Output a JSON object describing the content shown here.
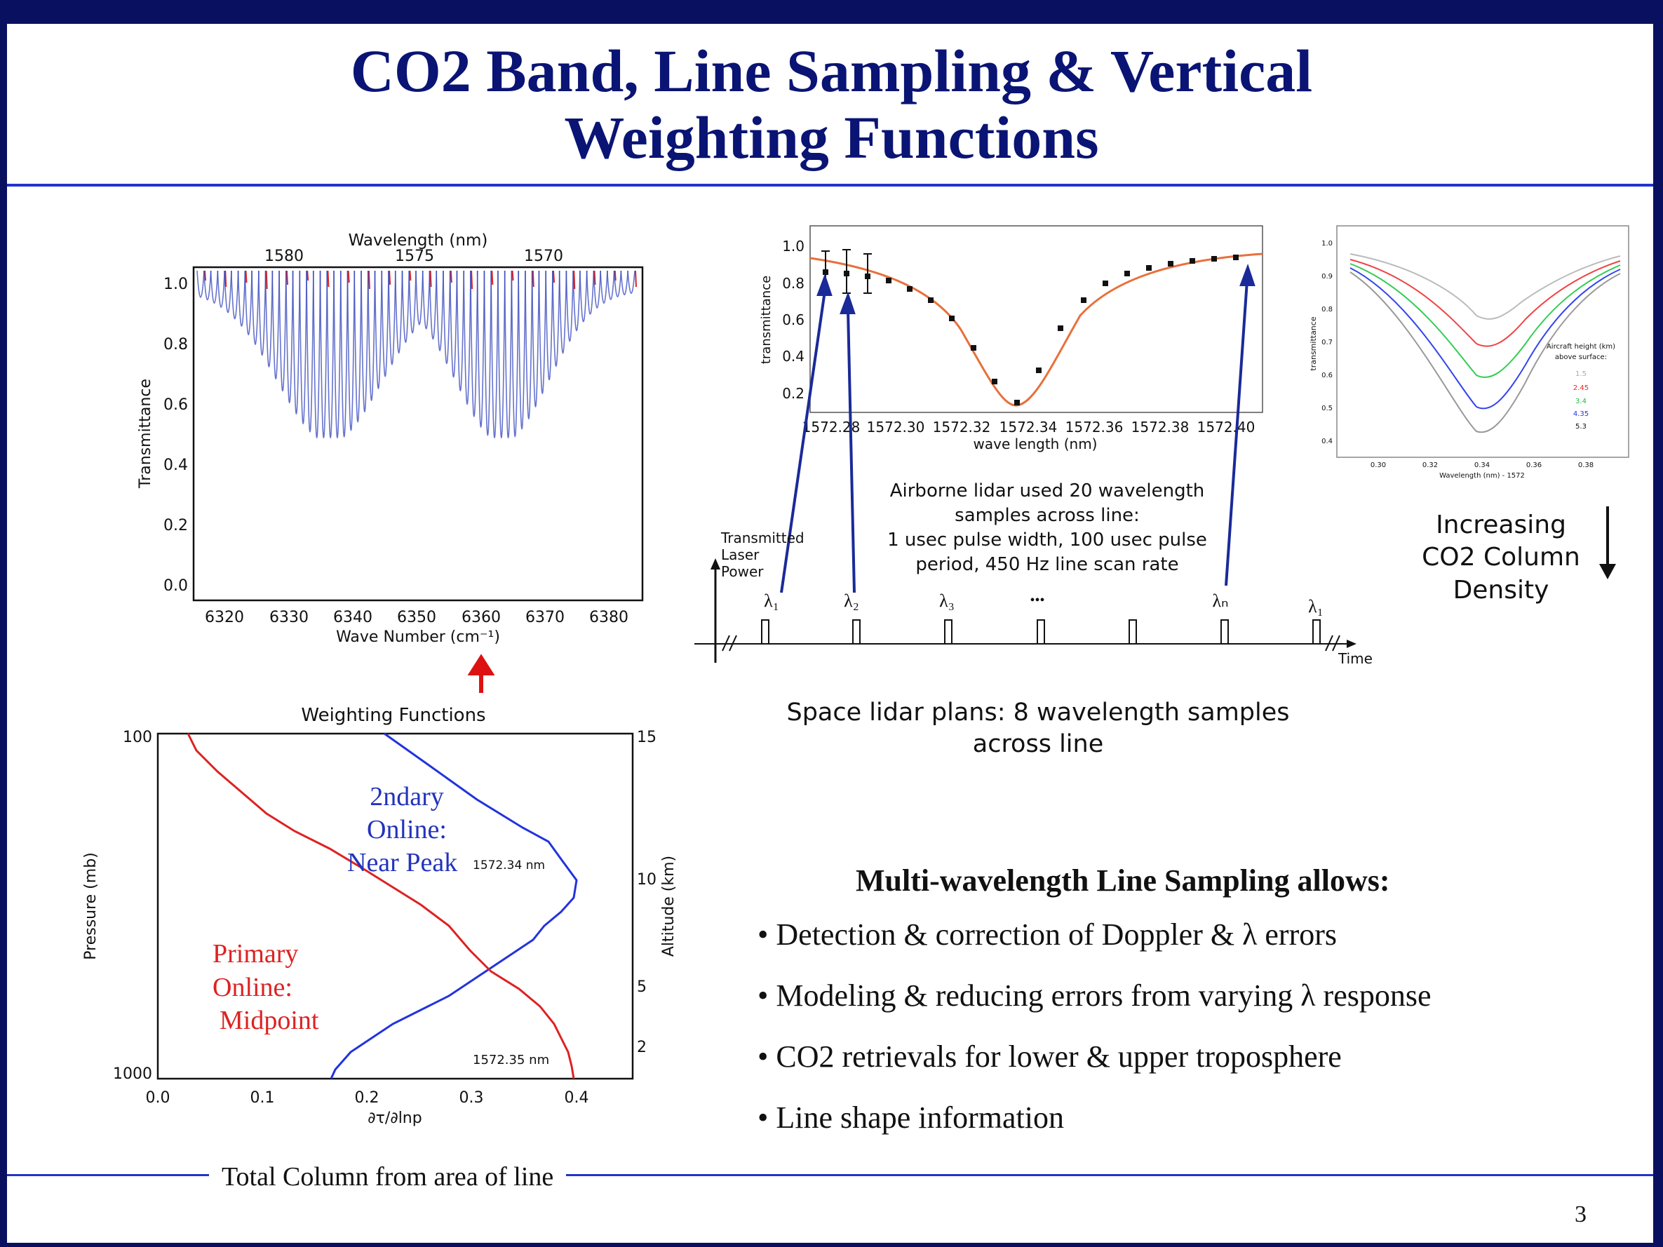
{
  "slide": {
    "title_line1": "CO2 Band, Line Sampling & Vertical",
    "title_line2": "Weighting Functions",
    "page_number": "3",
    "footer": "Total Column from area of line"
  },
  "band_plot": {
    "top_axis_label": "Wavelength (nm)",
    "top_ticks": [
      "1580",
      "1575",
      "1570"
    ],
    "y_label": "Transmittance",
    "y_ticks": [
      "1.0",
      "0.8",
      "0.6",
      "0.4",
      "0.2",
      "0.0"
    ],
    "x_label": "Wave Number (cm⁻¹)",
    "x_ticks": [
      "6320",
      "6330",
      "6340",
      "6350",
      "6360",
      "6370",
      "6380"
    ],
    "line_color": "#3344bb",
    "secondary_color": "#dd2222"
  },
  "line_plot": {
    "y_label": "transmittance",
    "y_ticks": [
      "1.0",
      "0.8",
      "0.6",
      "0.4",
      "0.2"
    ],
    "x_label": "wave length (nm)",
    "x_ticks": [
      "1572.28",
      "1572.30",
      "1572.32",
      "1572.34",
      "1572.36",
      "1572.38",
      "1572.40"
    ],
    "curve_color": "#e8703a"
  },
  "small_plot": {
    "y_label": "transmittance",
    "x_label": "Wavelength (nm) - 1572",
    "y_ticks": [
      "1.0",
      "0.9",
      "0.8",
      "0.7",
      "0.6",
      "0.5",
      "0.4"
    ],
    "x_ticks": [
      "0.30",
      "0.32",
      "0.34",
      "0.36",
      "0.38"
    ],
    "legend_title1": "Aircraft height (km)",
    "legend_title2": "above surface:",
    "legend": [
      {
        "label": "1.5",
        "color": "#aaaaaa"
      },
      {
        "label": "2.45",
        "color": "#ee2222"
      },
      {
        "label": "3.4",
        "color": "#22bb44"
      },
      {
        "label": "4.35",
        "color": "#2233ee"
      },
      {
        "label": "5.3",
        "color": "#111111"
      }
    ]
  },
  "increasing_note": [
    "Increasing",
    "CO2 Column",
    "Density"
  ],
  "airborne_note": [
    "Airborne lidar used 20 wavelength",
    "samples across line:",
    "1 usec pulse width, 100 usec pulse",
    "period, 450 Hz line scan rate"
  ],
  "pulse_diagram": {
    "y_label": [
      "Transmitted",
      "Laser",
      "Power"
    ],
    "time_label": "Time",
    "lambda_labels": [
      "λ₁",
      "λ₂",
      "λ₃",
      "•••",
      "λₙ",
      "λ₁"
    ]
  },
  "space_note": [
    "Space lidar plans: 8 wavelength samples",
    "across line"
  ],
  "weighting_plot": {
    "title": "Weighting Functions",
    "y_label": "Pressure (mb)",
    "y_ticks": [
      "100",
      "1000"
    ],
    "y2_label": "Altitude (km)",
    "y2_ticks": [
      "15",
      "10",
      "5",
      "2"
    ],
    "x_label": "∂τ/∂lnp",
    "x_ticks": [
      "0.0",
      "0.1",
      "0.2",
      "0.3",
      "0.4"
    ],
    "blue_label": [
      "2ndary",
      "Online:",
      "Near Peak"
    ],
    "blue_wavelength": "1572.34 nm",
    "red_label": [
      "Primary",
      "Online:",
      "Midpoint"
    ],
    "red_wavelength": "1572.35 nm",
    "blue_color": "#2233dd",
    "red_color": "#dd2222"
  },
  "bullets": {
    "heading": "Multi-wavelength Line Sampling allows:",
    "items": [
      "Detection & correction of Doppler & λ errors",
      "Modeling & reducing errors from varying λ response",
      "CO2 retrievals for lower & upper troposphere",
      "Line shape information"
    ]
  }
}
